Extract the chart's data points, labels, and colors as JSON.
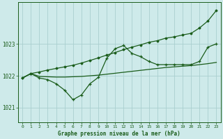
{
  "title": "Graphe pression niveau de la mer (hPa)",
  "bg_color": "#ceeaea",
  "grid_color": "#aacfcf",
  "line_color": "#1a5c1a",
  "x_ticks": [
    0,
    1,
    2,
    3,
    4,
    5,
    6,
    7,
    8,
    9,
    10,
    11,
    12,
    13,
    14,
    15,
    16,
    17,
    18,
    19,
    20,
    21,
    22,
    23
  ],
  "y_ticks": [
    1021,
    1022,
    1023
  ],
  "ylim": [
    1020.55,
    1024.3
  ],
  "xlim": [
    -0.5,
    23.5
  ],
  "series_zigzag": [
    1021.93,
    1022.07,
    1021.93,
    1021.88,
    1021.75,
    1021.55,
    1021.25,
    1021.4,
    1021.75,
    1021.95,
    1022.55,
    1022.85,
    1022.95,
    1022.7,
    1022.6,
    1022.45,
    1022.35,
    1022.35,
    1022.35,
    1022.35,
    1022.35,
    1022.45,
    1022.9,
    1023.0
  ],
  "series_diagonal": [
    1021.93,
    1022.07,
    1022.12,
    1022.18,
    1022.23,
    1022.28,
    1022.33,
    1022.4,
    1022.48,
    1022.56,
    1022.65,
    1022.73,
    1022.82,
    1022.9,
    1022.97,
    1023.05,
    1023.1,
    1023.18,
    1023.22,
    1023.28,
    1023.33,
    1023.5,
    1023.72,
    1024.05
  ],
  "series_flat": [
    1021.93,
    1022.07,
    1021.98,
    1021.97,
    1021.96,
    1021.96,
    1021.97,
    1021.98,
    1022.0,
    1022.02,
    1022.05,
    1022.08,
    1022.11,
    1022.14,
    1022.17,
    1022.2,
    1022.23,
    1022.26,
    1022.28,
    1022.3,
    1022.32,
    1022.35,
    1022.38,
    1022.42
  ]
}
